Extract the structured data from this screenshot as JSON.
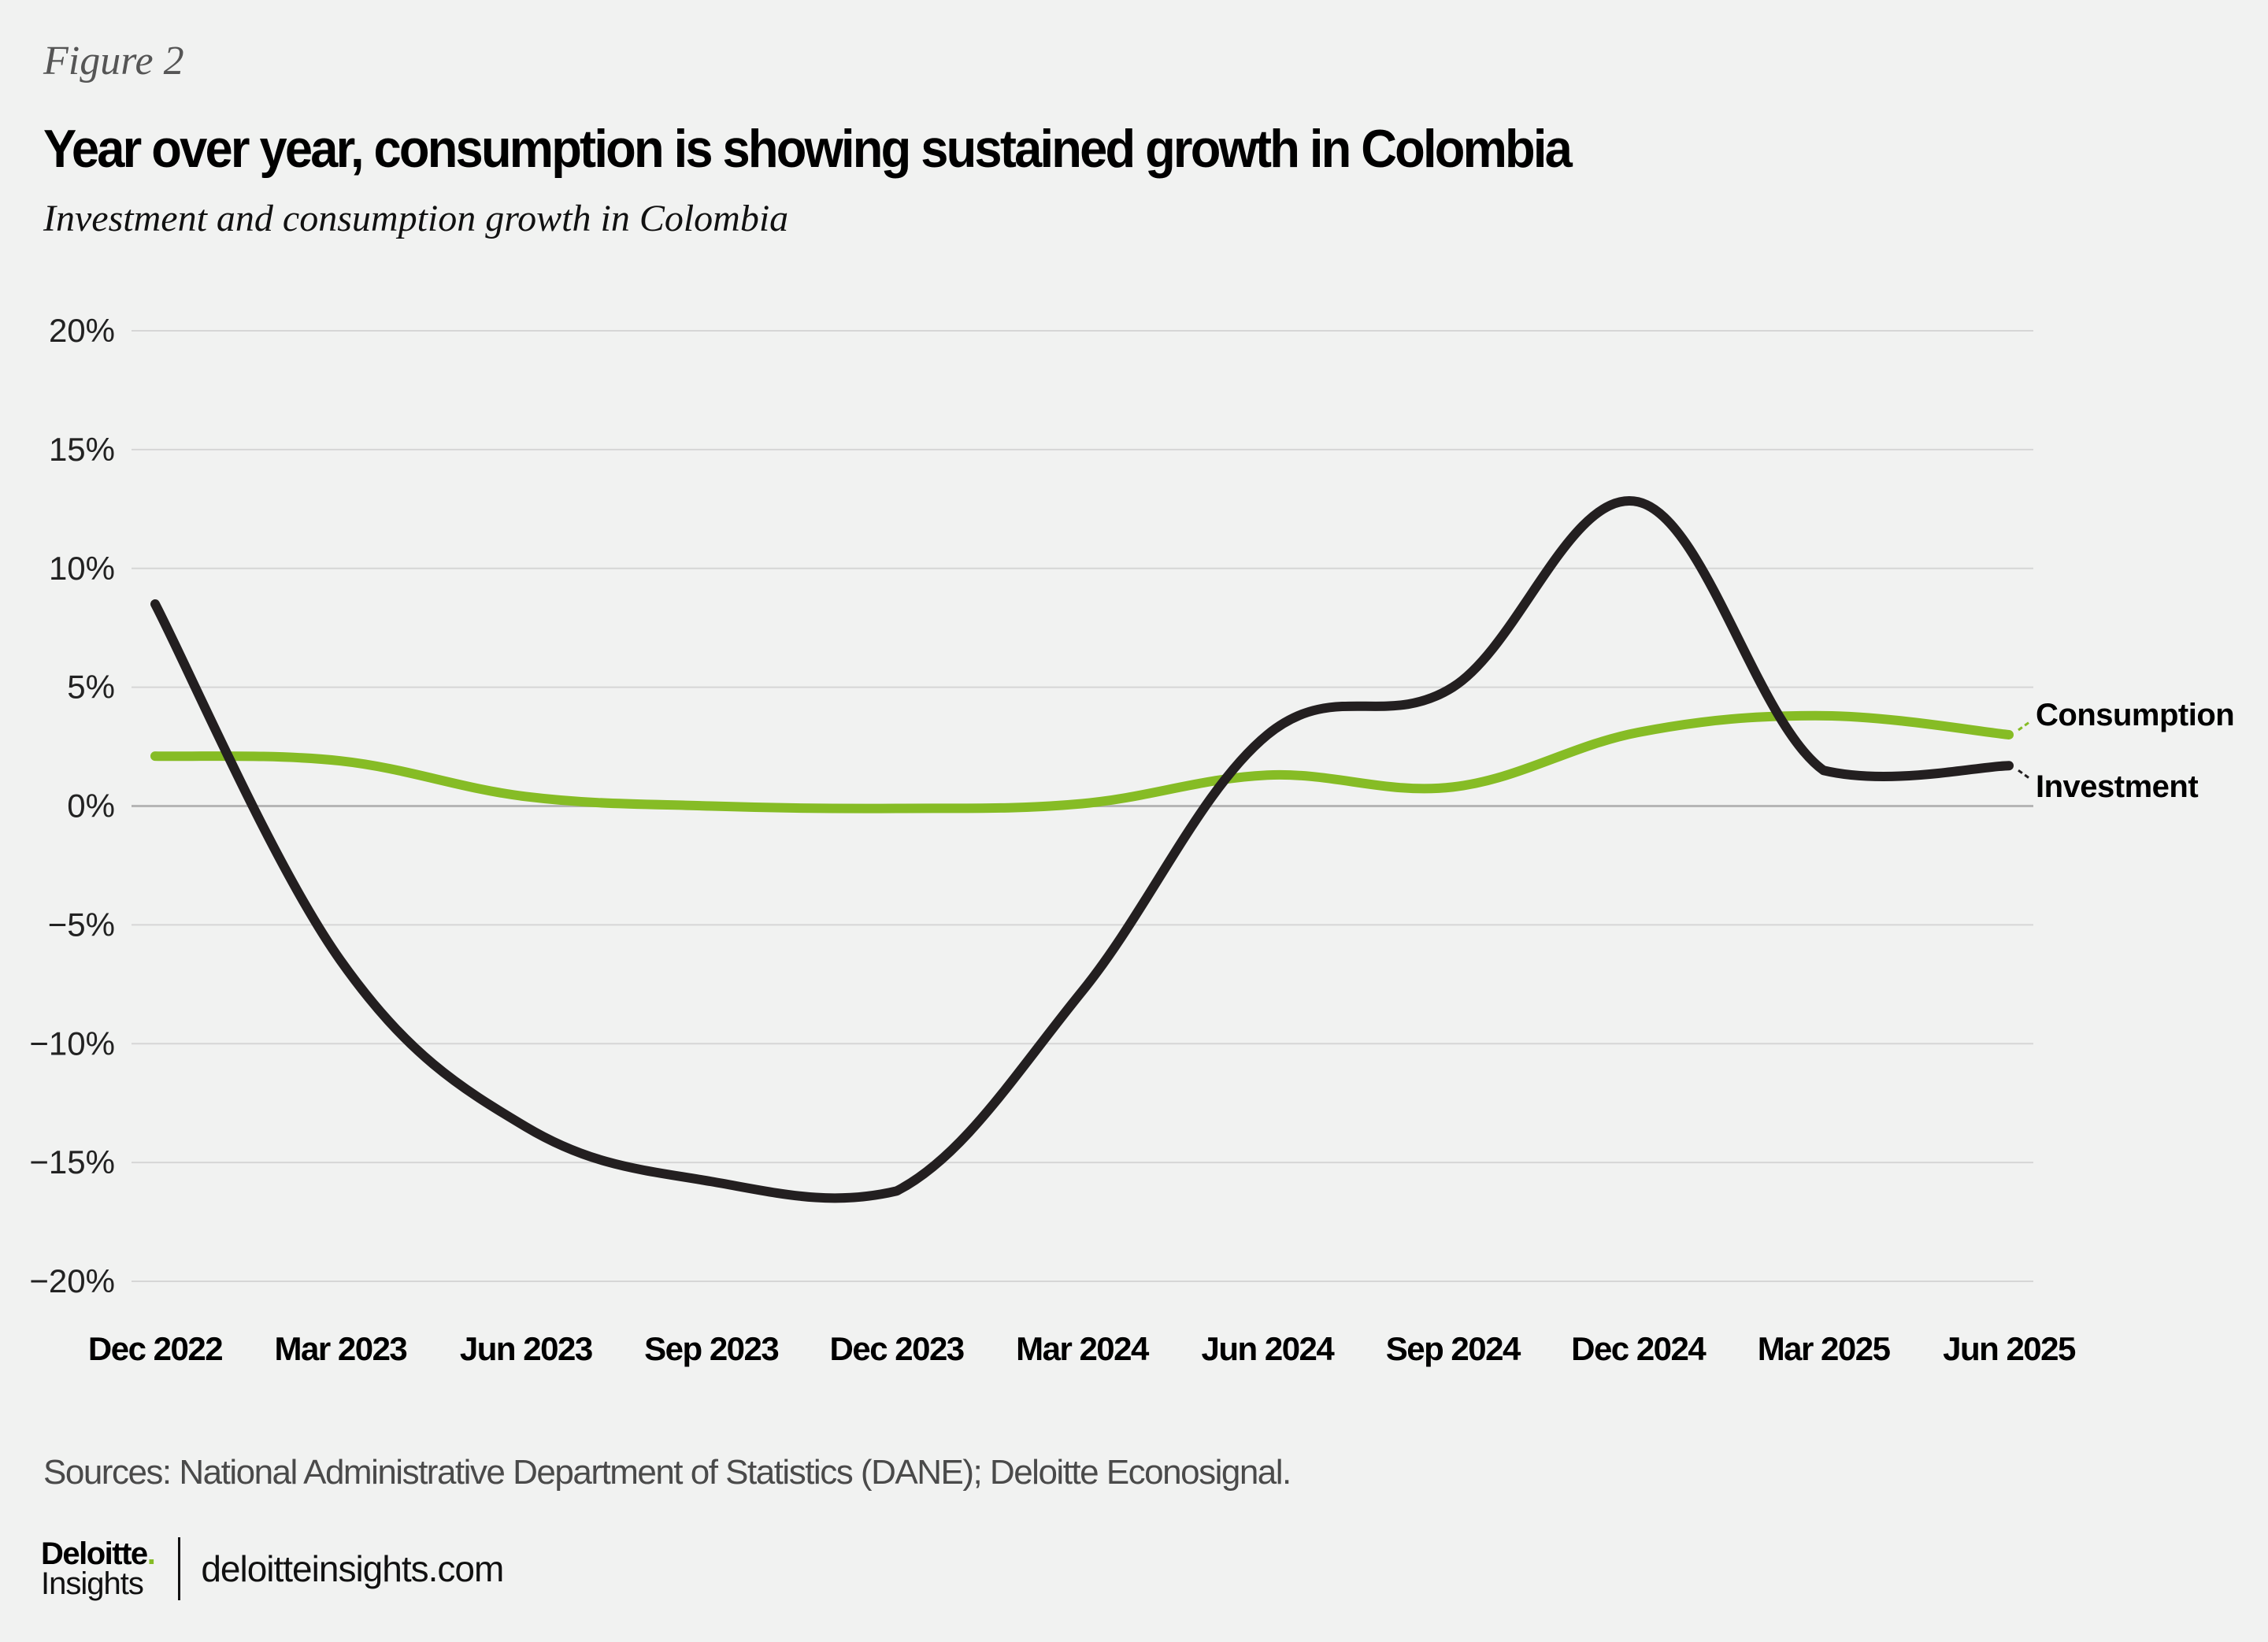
{
  "header": {
    "figure_label": "Figure 2",
    "title": "Year over year, consumption is showing sustained growth in Colombia",
    "subtitle": "Investment and consumption growth in Colombia"
  },
  "chart_data": {
    "type": "line",
    "title": "Year over year, consumption is showing sustained growth in Colombia",
    "subtitle": "Investment and consumption growth in Colombia",
    "xlabel": "",
    "ylabel": "",
    "categories": [
      "Dec 2022",
      "Mar 2023",
      "Jun 2023",
      "Sep 2023",
      "Dec 2023",
      "Mar 2024",
      "Jun 2024",
      "Sep 2024",
      "Dec 2024",
      "Mar 2025",
      "Jun 2025"
    ],
    "y_ticks": [
      "20%",
      "15%",
      "10%",
      "5%",
      "0%",
      "−5%",
      "−10%",
      "−15%",
      "−20%"
    ],
    "y_tick_values": [
      20,
      15,
      10,
      5,
      0,
      -5,
      -10,
      -15,
      -20
    ],
    "ylim": [
      -20,
      20
    ],
    "grid": true,
    "legend": "right, inline at line ends",
    "series": [
      {
        "name": "Consumption",
        "color": "#86bc25",
        "values": [
          2.1,
          1.9,
          0.4,
          0.0,
          -0.1,
          0.1,
          1.3,
          0.8,
          3.1,
          3.8,
          3.0
        ]
      },
      {
        "name": "Investment",
        "color": "#231f20",
        "values": [
          8.5,
          -6.5,
          -13.5,
          -15.8,
          -16.2,
          -7.8,
          3.0,
          5.0,
          12.8,
          1.5,
          1.7
        ]
      }
    ]
  },
  "footer": {
    "sources": "Sources: National Administrative Department of Statistics (DANE); Deloitte Econosignal.",
    "brand_name": "Deloitte",
    "brand_dot": ".",
    "brand_sub": "Insights",
    "url": "deloitteinsights.com"
  }
}
